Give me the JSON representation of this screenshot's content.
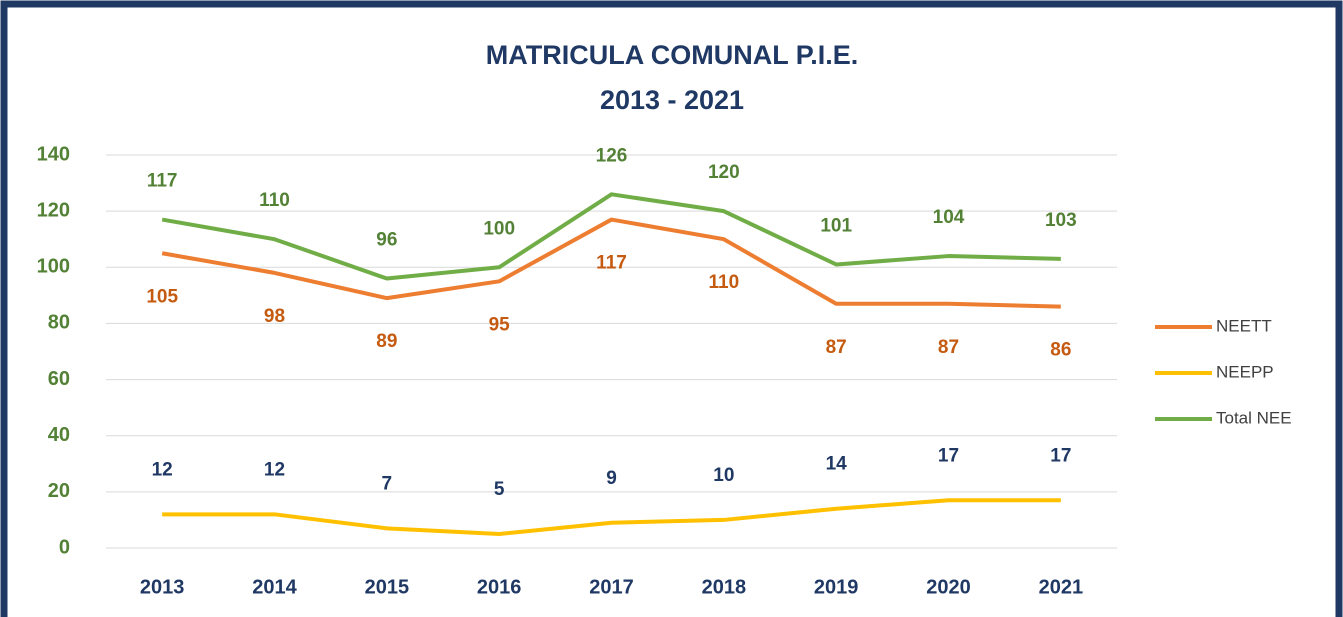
{
  "chart_data": {
    "type": "line",
    "title": "MATRICULA COMUNAL P.I.E.",
    "subtitle": "2013 - 2021",
    "categories": [
      "2013",
      "2014",
      "2015",
      "2016",
      "2017",
      "2018",
      "2019",
      "2020",
      "2021"
    ],
    "series": [
      {
        "name": "NEETT",
        "color": "#ed7d31",
        "label_color": "#c55a11",
        "values": [
          105,
          98,
          89,
          95,
          117,
          110,
          87,
          87,
          86
        ]
      },
      {
        "name": "NEEPP",
        "color": "#ffc000",
        "label_color": "#1f3864",
        "values": [
          12,
          12,
          7,
          5,
          9,
          10,
          14,
          17,
          17
        ]
      },
      {
        "name": "Total NEE",
        "color": "#70ad47",
        "label_color": "#538135",
        "values": [
          117,
          110,
          96,
          100,
          126,
          120,
          101,
          104,
          103
        ]
      }
    ],
    "ylim": [
      0,
      140
    ],
    "yticks": [
      0,
      20,
      40,
      60,
      80,
      100,
      120,
      140
    ],
    "grid": true,
    "legend": "right"
  }
}
